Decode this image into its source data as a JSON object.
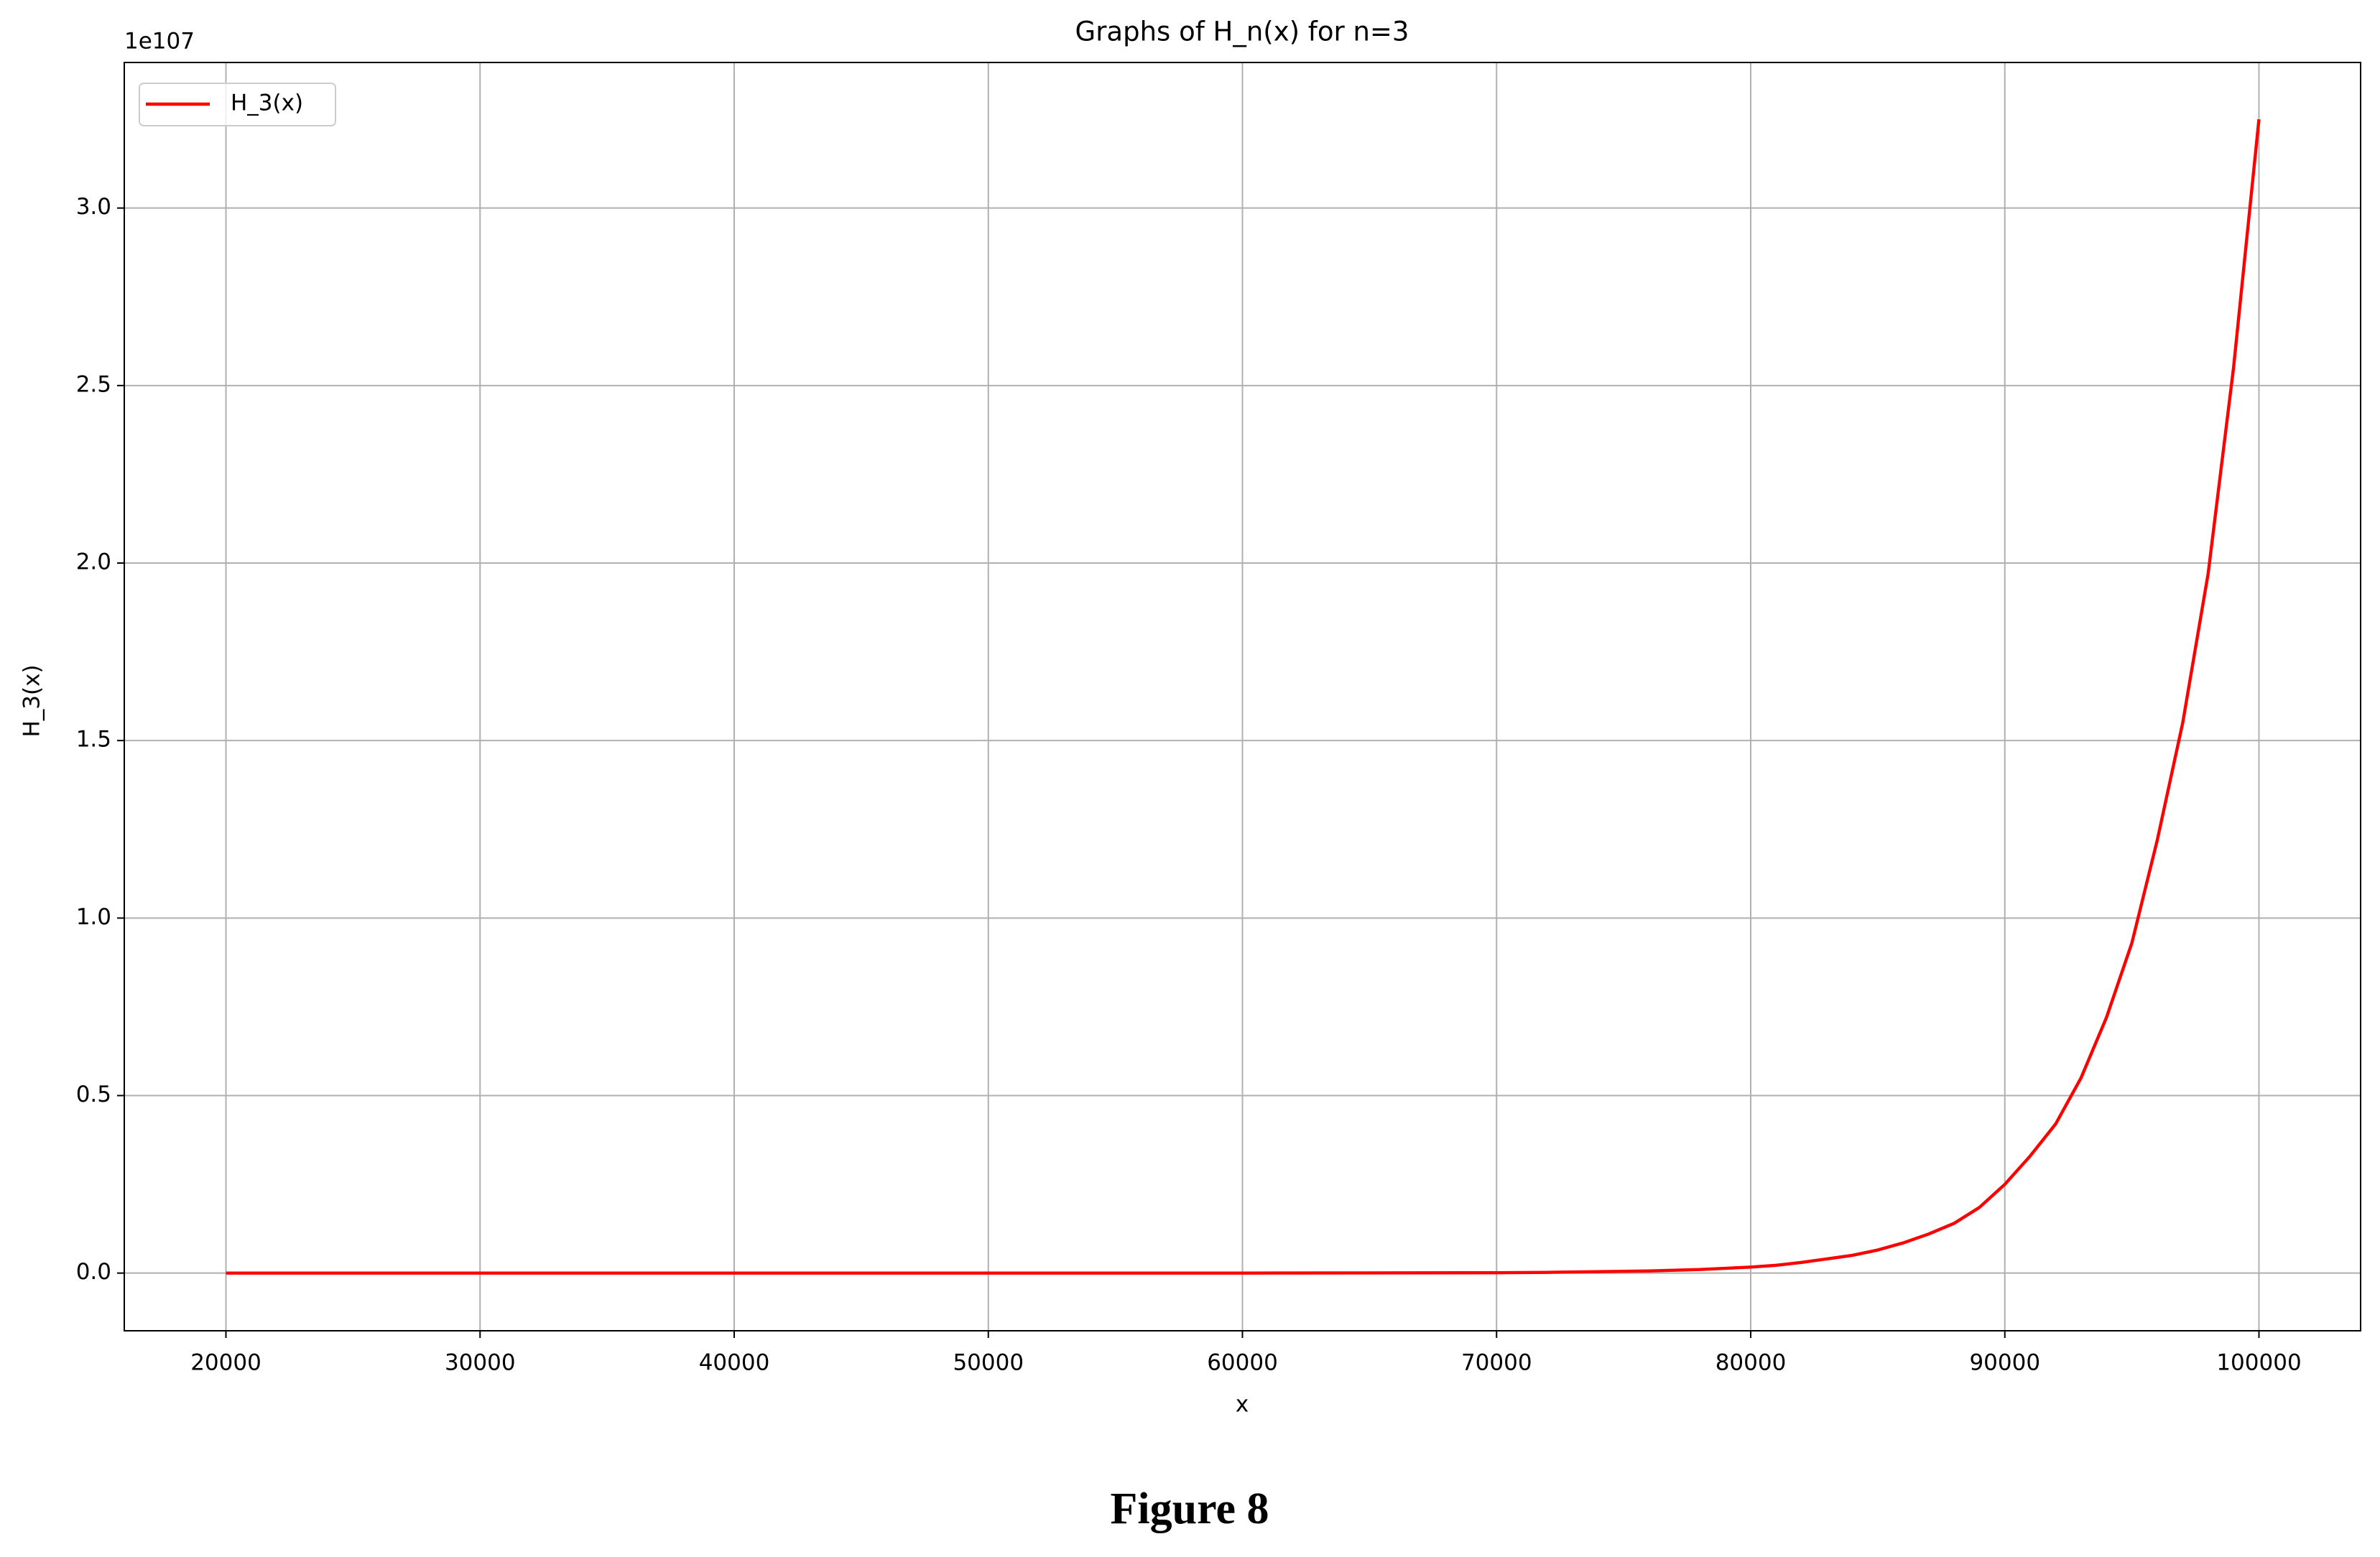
{
  "chart_data": {
    "type": "line",
    "title": "Graphs of H_n(x) for n=3",
    "xlabel": "x",
    "ylabel": "H_3(x)",
    "y_offset_label": "1e107",
    "x": [
      20000,
      30000,
      40000,
      50000,
      60000,
      70000,
      72000,
      74000,
      76000,
      78000,
      80000,
      81000,
      82000,
      83000,
      84000,
      85000,
      86000,
      87000,
      88000,
      89000,
      90000,
      91000,
      92000,
      93000,
      94000,
      95000,
      96000,
      97000,
      98000,
      99000,
      100000
    ],
    "series": [
      {
        "name": "H_3(x)",
        "color": "#ff0000",
        "values": [
          0,
          0,
          0,
          0,
          0,
          0.001,
          0.002,
          0.004,
          0.006,
          0.01,
          0.017,
          0.022,
          0.03,
          0.04,
          0.05,
          0.065,
          0.085,
          0.11,
          0.14,
          0.185,
          0.25,
          0.33,
          0.42,
          0.55,
          0.72,
          0.93,
          1.22,
          1.55,
          1.97,
          2.55,
          3.25
        ]
      }
    ],
    "xlim": [
      16000,
      104000
    ],
    "ylim": [
      -0.1625,
      3.41
    ],
    "xticks": [
      20000,
      30000,
      40000,
      50000,
      60000,
      70000,
      80000,
      90000,
      100000
    ],
    "yticks": [
      {
        "value": 0,
        "label": "0.0"
      },
      0.5,
      {
        "value": 1,
        "label": "1.0"
      },
      1.5,
      {
        "value": 2,
        "label": "2.0"
      },
      2.5,
      {
        "value": 3,
        "label": "3.0"
      }
    ],
    "grid": true,
    "legend": "upper left"
  },
  "figure_caption": "Figure 8"
}
